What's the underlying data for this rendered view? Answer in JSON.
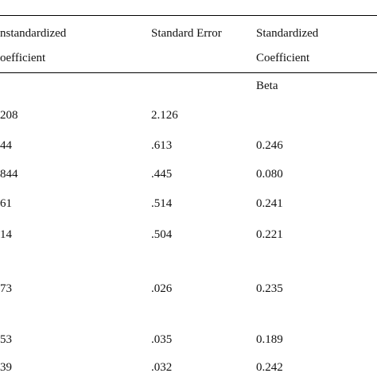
{
  "table": {
    "header": {
      "col1_line1": "nstandardized",
      "col1_line2": "oefficient",
      "col2_line1": "Standard Error",
      "col3_line1": "Standardized",
      "col3_line2": "Coefficient",
      "col3_line3": "Beta"
    },
    "rows": [
      {
        "unstd": "208",
        "se": "2.126",
        "beta": ""
      },
      {
        "unstd": "44",
        "se": ".613",
        "beta": "0.246"
      },
      {
        "unstd": "844",
        "se": ".445",
        "beta": "0.080"
      },
      {
        "unstd": "61",
        "se": ".514",
        "beta": "0.241"
      },
      {
        "unstd": "14",
        "se": ".504",
        "beta": "0.221"
      },
      {
        "unstd": "73",
        "se": ".026",
        "beta": "0.235"
      },
      {
        "unstd": "53",
        "se": ".035",
        "beta": "0.189"
      },
      {
        "unstd": "39",
        "se": ".032",
        "beta": "0.242"
      }
    ]
  }
}
